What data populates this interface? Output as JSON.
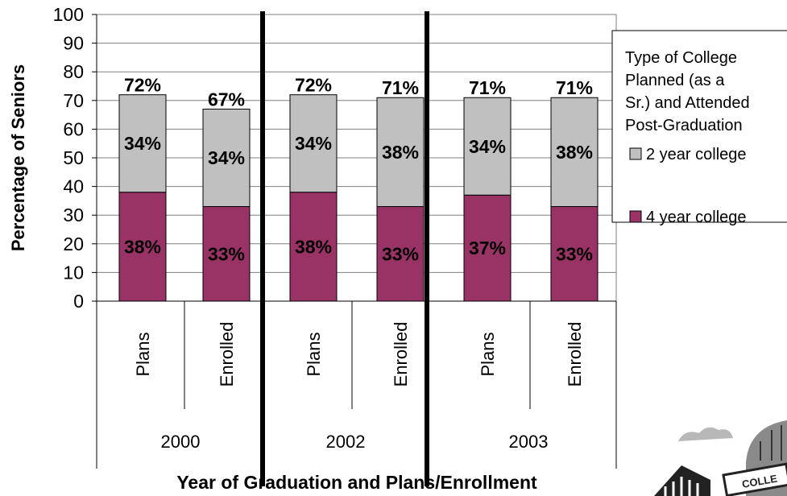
{
  "chart_data": {
    "type": "bar",
    "stacked": true,
    "ylabel": "Percentage of Seniors",
    "xlabel": "Year of Graduation and Plans/Enrollment",
    "ylim": [
      0,
      100
    ],
    "yticks": [
      0,
      10,
      20,
      30,
      40,
      50,
      60,
      70,
      80,
      90,
      100
    ],
    "groups": [
      {
        "year": "2000",
        "categories": [
          "Plans",
          "Enrolled"
        ]
      },
      {
        "year": "2002",
        "categories": [
          "Plans",
          "Enrolled"
        ]
      },
      {
        "year": "2003",
        "categories": [
          "Plans",
          "Enrolled"
        ]
      }
    ],
    "categories": [
      "Plans",
      "Enrolled",
      "Plans",
      "Enrolled",
      "Plans",
      "Enrolled"
    ],
    "series": [
      {
        "name": "4 year college",
        "color": "#993366",
        "values": [
          38,
          33,
          38,
          33,
          37,
          33
        ],
        "labels": [
          "38%",
          "33%",
          "38%",
          "33%",
          "37%",
          "33%"
        ]
      },
      {
        "name": "2 year college",
        "color": "#c0c0c0",
        "values": [
          34,
          34,
          34,
          38,
          34,
          38
        ],
        "labels": [
          "34%",
          "34%",
          "34%",
          "38%",
          "34%",
          "38%"
        ]
      }
    ],
    "totals": [
      72,
      67,
      72,
      71,
      71,
      71
    ],
    "total_labels": [
      "72%",
      "67%",
      "72%",
      "71%",
      "71%",
      "71%"
    ],
    "legend": {
      "title_lines": [
        "Type of College",
        "Planned (as a",
        "Sr.) and Attended",
        "Post-Graduation"
      ],
      "items": [
        "2 year college",
        "4 year college"
      ],
      "placement": "right"
    },
    "grid": true
  },
  "decoration": {
    "clipart_text": "COLLE"
  }
}
